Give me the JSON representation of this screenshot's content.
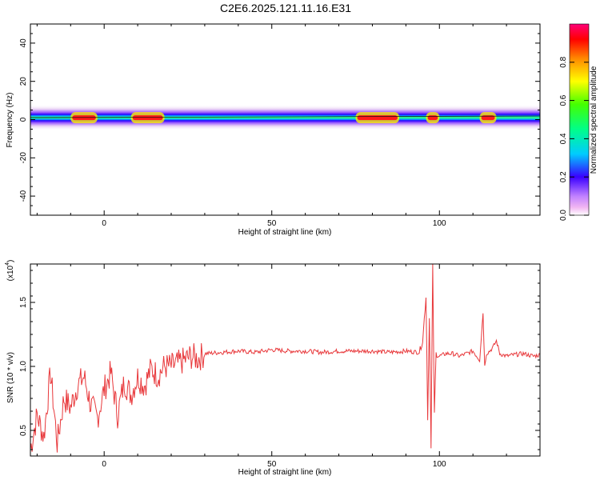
{
  "title": "C2E6.2025.121.11.16.E31",
  "chart_data": [
    {
      "type": "heatmap",
      "xlabel": "Height of straight line (km)",
      "ylabel": "Frequency (Hz)",
      "xlim": [
        -22,
        130
      ],
      "ylim": [
        -50,
        50
      ],
      "x_ticks": [
        "0",
        "50",
        "100"
      ],
      "y_ticks": [
        "40",
        "20",
        "0",
        "-20",
        "-40"
      ],
      "colorbar": {
        "label": "Normalized spectral amplitude",
        "range": [
          0,
          1
        ],
        "ticks": [
          "0.0",
          "0.2",
          "0.4",
          "0.6",
          "0.8"
        ]
      },
      "ridge_centre_hz": 1,
      "ridge_bright_spans_km": [
        [
          -10,
          -2
        ],
        [
          8,
          18
        ],
        [
          75,
          88
        ],
        [
          96,
          100
        ],
        [
          112,
          117
        ]
      ]
    },
    {
      "type": "line",
      "xlabel": "Height of straight line (km)",
      "ylabel": "SNR (10 * v/v)",
      "y_multiplier": "(x10",
      "y_multiplier_exp": "4",
      "xlim": [
        -22,
        130
      ],
      "ylim": [
        0.3,
        1.8
      ],
      "x_ticks": [
        "0",
        "50",
        "100"
      ],
      "y_ticks": [
        "0.5",
        "1.0",
        "1.5"
      ],
      "color": "#e8383b",
      "series": [
        {
          "x": [
            -22,
            -20,
            -18,
            -16,
            -14,
            -12,
            -10,
            -8,
            -6,
            -4,
            -2,
            0,
            2,
            4,
            6,
            8,
            10,
            12,
            14,
            16,
            18,
            20,
            22,
            24,
            26,
            28,
            30,
            35,
            40,
            45,
            50,
            55,
            60,
            65,
            70,
            75,
            80,
            85,
            90,
            94,
            95,
            96,
            96.5,
            97,
            97.5,
            98,
            98.5,
            99,
            100,
            102,
            104,
            106,
            108,
            110,
            112,
            113,
            113.5,
            114,
            115,
            116,
            117,
            118,
            120,
            122,
            125,
            128,
            130
          ],
          "y": [
            0.35,
            0.62,
            0.45,
            0.95,
            0.4,
            0.75,
            0.68,
            0.85,
            0.92,
            0.7,
            0.6,
            0.82,
            0.95,
            0.62,
            0.88,
            0.78,
            0.92,
            0.85,
            0.98,
            0.93,
            1.0,
            1.0,
            1.02,
            1.05,
            1.08,
            1.06,
            1.1,
            1.11,
            1.12,
            1.11,
            1.13,
            1.12,
            1.12,
            1.11,
            1.12,
            1.12,
            1.12,
            1.11,
            1.12,
            1.11,
            1.2,
            1.55,
            0.6,
            1.4,
            0.35,
            1.78,
            0.62,
            1.1,
            1.08,
            1.1,
            1.1,
            1.08,
            1.1,
            1.12,
            1.05,
            1.42,
            1.0,
            1.1,
            1.12,
            1.15,
            1.2,
            1.1,
            1.08,
            1.09,
            1.1,
            1.08,
            1.09
          ]
        }
      ]
    }
  ]
}
